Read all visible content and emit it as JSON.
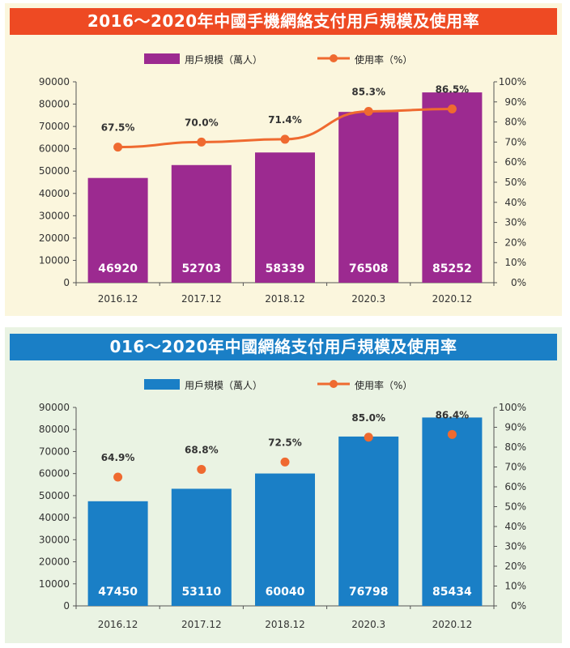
{
  "charts": [
    {
      "id": "top",
      "title": "2016～2020年中國手機網絡支付用戶規模及使用率",
      "colors": {
        "bar": "#9c2a90",
        "line": "#ef6a30",
        "marker": "#ef6a30",
        "title_bg": "#ee4a23"
      },
      "legend": {
        "bar": "用戶規模（萬人）",
        "line": "使用率（%）"
      },
      "chart_data": {
        "type": "bar",
        "categories": [
          "2016.12",
          "2017.12",
          "2018.12",
          "2020.3",
          "2020.12"
        ],
        "series": [
          {
            "name": "用戶規模（萬人）",
            "type": "bar",
            "values": [
              46920,
              52703,
              58339,
              76508,
              85252
            ]
          },
          {
            "name": "使用率（%）",
            "type": "line",
            "values": [
              67.5,
              70.0,
              71.4,
              85.3,
              86.5
            ],
            "value_labels": [
              "67.5%",
              "70.0%",
              "71.4%",
              "85.3%",
              "86.5%"
            ]
          }
        ],
        "ylim": [
          0,
          90000
        ],
        "y2lim": [
          0,
          100
        ],
        "yticks": [
          "0",
          "10000",
          "20000",
          "30000",
          "40000",
          "50000",
          "60000",
          "70000",
          "80000",
          "90000"
        ],
        "y2ticks": [
          "0%",
          "10%",
          "20%",
          "30%",
          "40%",
          "50%",
          "60%",
          "70%",
          "80%",
          "90%",
          "100%"
        ],
        "line_style": "line",
        "legend_position": "top"
      }
    },
    {
      "id": "bottom",
      "title": "016～2020年中國網絡支付用戶規模及使用率",
      "colors": {
        "bar": "#1a7fc6",
        "line": "#ef6a30",
        "marker": "#ef6a30",
        "title_bg": "#1a7fc6"
      },
      "legend": {
        "bar": "用戶規模（萬人）",
        "line": "使用率（%）"
      },
      "chart_data": {
        "type": "bar",
        "categories": [
          "2016.12",
          "2017.12",
          "2018.12",
          "2020.3",
          "2020.12"
        ],
        "series": [
          {
            "name": "用戶規模（萬人）",
            "type": "bar",
            "values": [
              47450,
              53110,
              60040,
              76798,
              85434
            ]
          },
          {
            "name": "使用率（%）",
            "type": "scatter",
            "values": [
              64.9,
              68.8,
              72.5,
              85.0,
              86.4
            ],
            "value_labels": [
              "64.9%",
              "68.8%",
              "72.5%",
              "85.0%",
              "86.4%"
            ]
          }
        ],
        "ylim": [
          0,
          90000
        ],
        "y2lim": [
          0,
          100
        ],
        "yticks": [
          "0",
          "10000",
          "20000",
          "30000",
          "40000",
          "50000",
          "60000",
          "70000",
          "80000",
          "90000"
        ],
        "y2ticks": [
          "0%",
          "10%",
          "20%",
          "30%",
          "40%",
          "50%",
          "60%",
          "70%",
          "80%",
          "90%",
          "100%"
        ],
        "line_style": "markers",
        "legend_position": "top"
      }
    }
  ]
}
